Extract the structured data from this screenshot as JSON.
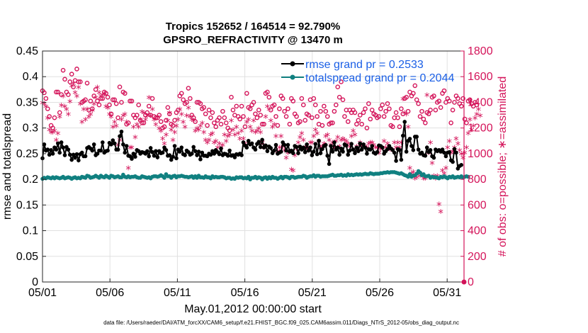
{
  "chart_data": {
    "type": "line",
    "title_line1": "Tropics 152652 / 164514 = 92.790%",
    "title_line2": "GPSRO_REFRACTIVITY @ 13470 m",
    "xlabel": "May.01,2012 00:00:00 start",
    "ylabel_left": "rmse and totalspread",
    "ylabel_right": "# of obs: o=possible; ∗=assimilated",
    "footnote": "data file: /Users/raeder/DAI/ATM_forcXX/CAM6_setup/f.e21.FHIST_BGC.f09_025.CAM6assim.011/Diags_NTrS_2012-05/obs_diag_output.nc",
    "x_range": [
      1,
      32.25
    ],
    "x_ticks": [
      1,
      6,
      11,
      16,
      21,
      26,
      31
    ],
    "x_tick_labels": [
      "05/01",
      "05/06",
      "05/11",
      "05/16",
      "05/21",
      "05/26",
      "05/31"
    ],
    "ylim_left": [
      0,
      0.45
    ],
    "y_ticks_left": [
      0,
      0.05,
      0.1,
      0.15,
      0.2,
      0.25,
      0.3,
      0.35,
      0.4,
      0.45
    ],
    "y_tick_labels_left": [
      "0",
      "0.05",
      "0.1",
      "0.15",
      "0.2",
      "0.25",
      "0.3",
      "0.35",
      "0.4",
      "0.45"
    ],
    "ylim_right": [
      0,
      1800
    ],
    "y_ticks_right": [
      0,
      200,
      400,
      600,
      800,
      1000,
      1200,
      1400,
      1600,
      1800
    ],
    "y_tick_labels_right": [
      "0",
      "200",
      "400",
      "600",
      "800",
      "1000",
      "1200",
      "1400",
      "1600",
      "1800"
    ],
    "grid": true,
    "legend_position": "top-right",
    "colors": {
      "rmse": "#000000",
      "totalspread": "#108080",
      "obs": "#d4145a",
      "legend_text": "#1a5fe6",
      "grid": "#e0e0e0"
    },
    "series": [
      {
        "name": "rmse grand pr = 0.2533",
        "key": "rmse",
        "values": [
          0.241,
          0.268,
          0.256,
          0.258,
          0.248,
          0.257,
          0.25,
          0.262,
          0.258,
          0.27,
          0.252,
          0.272,
          0.262,
          0.247,
          0.263,
          0.258,
          0.248,
          0.238,
          0.248,
          0.242,
          0.249,
          0.237,
          0.249,
          0.252,
          0.245,
          0.245,
          0.261,
          0.263,
          0.26,
          0.256,
          0.268,
          0.247,
          0.25,
          0.256,
          0.256,
          0.272,
          0.252,
          0.255,
          0.256,
          0.271,
          0.268,
          0.276,
          0.27,
          0.258,
          0.258,
          0.284,
          0.293,
          0.268,
          0.252,
          0.265,
          0.246,
          0.245,
          0.24,
          0.25,
          0.244,
          0.257,
          0.255,
          0.25,
          0.253,
          0.252,
          0.25,
          0.255,
          0.245,
          0.261,
          0.253,
          0.246,
          0.255,
          0.243,
          0.255,
          0.251,
          0.252,
          0.262,
          0.257,
          0.246,
          0.247,
          0.238,
          0.244,
          0.265,
          0.241,
          0.258,
          0.254,
          0.262,
          0.249,
          0.247,
          0.256,
          0.253,
          0.248,
          0.25,
          0.263,
          0.255,
          0.247,
          0.254,
          0.239,
          0.252,
          0.246,
          0.246,
          0.245,
          0.25,
          0.248,
          0.255,
          0.25,
          0.257,
          0.253,
          0.249,
          0.26,
          0.247,
          0.25,
          0.249,
          0.246,
          0.256,
          0.246,
          0.247,
          0.243,
          0.249,
          0.248,
          0.25,
          0.247,
          0.272,
          0.266,
          0.262,
          0.275,
          0.268,
          0.27,
          0.262,
          0.258,
          0.269,
          0.273,
          0.263,
          0.277,
          0.262,
          0.266,
          0.255,
          0.264,
          0.261,
          0.251,
          0.256,
          0.267,
          0.25,
          0.252,
          0.254,
          0.272,
          0.267,
          0.256,
          0.267,
          0.254,
          0.256,
          0.251,
          0.265,
          0.263,
          0.251,
          0.264,
          0.258,
          0.262,
          0.253,
          0.268,
          0.256,
          0.262,
          0.247,
          0.254,
          0.269,
          0.249,
          0.275,
          0.251,
          0.259,
          0.265,
          0.267,
          0.246,
          0.23,
          0.265,
          0.254,
          0.272,
          0.258,
          0.262,
          0.248,
          0.26,
          0.254,
          0.268,
          0.266,
          0.248,
          0.256,
          0.269,
          0.258,
          0.251,
          0.262,
          0.255,
          0.27,
          0.258,
          0.268,
          0.262,
          0.25,
          0.259,
          0.258,
          0.265,
          0.252,
          0.25,
          0.253,
          0.266,
          0.265,
          0.262,
          0.25,
          0.255,
          0.259,
          0.265,
          0.26,
          0.257,
          0.252,
          0.236,
          0.259,
          0.257,
          0.238,
          0.285,
          0.312,
          0.254,
          0.275,
          0.279,
          0.265,
          0.257,
          0.283,
          0.283,
          0.258,
          0.25,
          0.252,
          0.247,
          0.246,
          0.262,
          0.253,
          0.257,
          0.245,
          0.242,
          0.258,
          0.255,
          0.257,
          0.254,
          0.258,
          0.252,
          0.245,
          0.252,
          0.253,
          0.237,
          0.234,
          0.259,
          0.252,
          0.221,
          0.226,
          0.228
        ]
      },
      {
        "name": "totalspread grand pr = 0.2044",
        "key": "totalspread",
        "values": [
          0.201,
          0.203,
          0.202,
          0.204,
          0.203,
          0.202,
          0.204,
          0.202,
          0.204,
          0.203,
          0.202,
          0.203,
          0.205,
          0.202,
          0.203,
          0.204,
          0.203,
          0.201,
          0.203,
          0.204,
          0.202,
          0.203,
          0.202,
          0.205,
          0.204,
          0.203,
          0.207,
          0.206,
          0.203,
          0.204,
          0.205,
          0.207,
          0.205,
          0.203,
          0.207,
          0.205,
          0.204,
          0.207,
          0.205,
          0.203,
          0.207,
          0.206,
          0.204,
          0.205,
          0.206,
          0.204,
          0.204,
          0.209,
          0.205,
          0.204,
          0.206,
          0.204,
          0.205,
          0.205,
          0.206,
          0.204,
          0.203,
          0.203,
          0.206,
          0.205,
          0.204,
          0.203,
          0.204,
          0.202,
          0.205,
          0.206,
          0.206,
          0.205,
          0.206,
          0.208,
          0.206,
          0.203,
          0.21,
          0.206,
          0.206,
          0.203,
          0.206,
          0.207,
          0.204,
          0.206,
          0.206,
          0.207,
          0.206,
          0.205,
          0.205,
          0.204,
          0.205,
          0.206,
          0.203,
          0.206,
          0.203,
          0.207,
          0.204,
          0.204,
          0.203,
          0.206,
          0.204,
          0.204,
          0.202,
          0.206,
          0.204,
          0.205,
          0.204,
          0.204,
          0.205,
          0.205,
          0.204,
          0.202,
          0.203,
          0.203,
          0.201,
          0.202,
          0.201,
          0.204,
          0.203,
          0.204,
          0.204,
          0.202,
          0.203,
          0.202,
          0.205,
          0.2,
          0.203,
          0.203,
          0.205,
          0.202,
          0.204,
          0.203,
          0.2,
          0.203,
          0.204,
          0.201,
          0.204,
          0.202,
          0.205,
          0.203,
          0.203,
          0.201,
          0.203,
          0.205,
          0.202,
          0.205,
          0.205,
          0.204,
          0.202,
          0.205,
          0.205,
          0.203,
          0.204,
          0.205,
          0.205,
          0.205,
          0.207,
          0.206,
          0.203,
          0.205,
          0.206,
          0.206,
          0.208,
          0.205,
          0.207,
          0.207,
          0.205,
          0.206,
          0.206,
          0.206,
          0.206,
          0.207,
          0.208,
          0.209,
          0.207,
          0.207,
          0.208,
          0.208,
          0.209,
          0.207,
          0.208,
          0.207,
          0.21,
          0.208,
          0.209,
          0.208,
          0.209,
          0.21,
          0.209,
          0.21,
          0.209,
          0.21,
          0.211,
          0.21,
          0.21,
          0.212,
          0.211,
          0.21,
          0.211,
          0.211,
          0.211,
          0.212,
          0.212,
          0.213,
          0.213,
          0.214,
          0.213,
          0.214,
          0.214,
          0.214,
          0.213,
          0.212,
          0.211,
          0.212,
          0.21,
          0.208,
          0.207,
          0.205,
          0.21,
          0.205,
          0.207,
          0.208,
          0.211,
          0.216,
          0.213,
          0.208,
          0.21,
          0.206,
          0.206,
          0.207,
          0.203,
          0.205,
          0.204,
          0.204,
          0.203,
          0.202,
          0.205,
          0.204,
          0.206,
          0.204,
          0.202,
          0.205,
          0.204,
          0.206,
          0.203,
          0.204,
          0.205,
          0.204,
          0.206,
          0.203,
          0.205,
          0.206,
          0.205
        ]
      },
      {
        "name": "possible",
        "key": "obs_possible",
        "values": [
          1490,
          1475,
          1430,
          1350,
          1290,
          1220,
          1200,
          1280,
          1480,
          1480,
          1320,
          1460,
          1650,
          1580,
          1480,
          1460,
          1560,
          1620,
          1520,
          1570,
          1660,
          1560,
          1560,
          1400,
          1410,
          1420,
          1550,
          1340,
          1410,
          1350,
          1450,
          1500,
          1410,
          1380,
          1430,
          1430,
          1480,
          1470,
          1440,
          1380,
          1310,
          1420,
          1420,
          1390,
          1280,
          1520,
          1400,
          1480,
          1470,
          1230,
          1240,
          1410,
          1410,
          1300,
          1280,
          1300,
          1380,
          1260,
          1240,
          1240,
          1300,
          1320,
          1370,
          1300,
          1430,
          1290,
          1280,
          1280,
          1300,
          1250,
          1200,
          1210,
          1260,
          1360,
          1310,
          1230,
          1220,
          1260,
          1320,
          1340,
          1450,
          1470,
          1420,
          1390,
          1400,
          1510,
          1430,
          1300,
          1280,
          1250,
          1400,
          1400,
          1390,
          1350,
          1360,
          1310,
          1220,
          1340,
          1280,
          1320,
          1240,
          1210,
          1260,
          1280,
          1230,
          1330,
          1280,
          1240,
          1200,
          1180,
          1440,
          1340,
          1300,
          1370,
          1290,
          1270,
          1370,
          1290,
          1210,
          1470,
          1360,
          1350,
          1380,
          1400,
          1310,
          1280,
          1340,
          1300,
          1230,
          1230,
          1470,
          1480,
          1440,
          1340,
          1370,
          1380,
          1290,
          1220,
          1350,
          1450,
          1430,
          1330,
          1290,
          1350,
          1230,
          1430,
          1410,
          1310,
          1290,
          1240,
          1250,
          1430,
          1380,
          1260,
          1310,
          1300,
          1420,
          1280,
          1430,
          1380,
          1290,
          1230,
          1330,
          1220,
          1370,
          1330,
          1290,
          1230,
          1240,
          1240,
          1330,
          1380,
          1520,
          1440,
          1560,
          1420,
          1290,
          1340,
          1250,
          1340,
          1320,
          1340,
          1320,
          1230,
          1260,
          1300,
          1230,
          1320,
          1350,
          1200,
          1390,
          1270,
          1340,
          1310,
          1300,
          1280,
          1290,
          1350,
          1380,
          1290,
          1330,
          1390,
          1350,
          1220,
          1210,
          1280,
          1320,
          1280,
          1210,
          1350,
          1310,
          1430,
          1440,
          1330,
          1480,
          1450,
          1470,
          1530,
          1420,
          1390,
          1290,
          1330,
          1270,
          1240,
          1320,
          1310,
          1340,
          1440,
          1450,
          1340,
          1400,
          1410,
          1360,
          1470,
          1490,
          1400,
          1430,
          1410,
          1240,
          1340,
          1400,
          1450,
          1430,
          1390,
          1370,
          1430,
          1270,
          1240,
          1410,
          1420,
          1390,
          1370,
          1400,
          1380
        ]
      },
      {
        "name": "assimilated",
        "key": "obs_assimilated",
        "values": [
          1390,
          1380,
          1360,
          1270,
          1180,
          1160,
          1160,
          1170,
          1100,
          1150,
          1280,
          1370,
          1440,
          1360,
          1340,
          1300,
          1400,
          1520,
          1540,
          1470,
          1440,
          1510,
          1380,
          1240,
          1340,
          1260,
          1340,
          1280,
          1300,
          1330,
          1380,
          1430,
          1510,
          1470,
          1440,
          1450,
          1460,
          1360,
          1350,
          1300,
          1280,
          1200,
          1240,
          1210,
          1060,
          1100,
          1260,
          1290,
          1300,
          1240,
          880,
          1040,
          1040,
          1200,
          1120,
          1220,
          1200,
          1260,
          1320,
          1310,
          1260,
          1290,
          1430,
          1290,
          1340,
          1260,
          1220,
          1280,
          1190,
          1170,
          1110,
          1070,
          1140,
          1250,
          1310,
          1180,
          1100,
          1160,
          1210,
          1260,
          1340,
          1300,
          1240,
          1200,
          1290,
          1350,
          1280,
          1260,
          1250,
          1170,
          1190,
          1180,
          1210,
          1230,
          1160,
          1100,
          1080,
          1100,
          1140,
          1150,
          1080,
          1090,
          1040,
          1070,
          1040,
          1060,
          1140,
          1090,
          1130,
          1140,
          1250,
          1180,
          1140,
          1200,
          1150,
          1110,
          1170,
          1110,
          1070,
          1240,
          1260,
          1200,
          1170,
          1250,
          1160,
          1170,
          1190,
          1160,
          1080,
          1040,
          1280,
          1360,
          1340,
          1250,
          1200,
          1220,
          1130,
          1010,
          1040,
          1130,
          1050,
          1020,
          960,
          1000,
          1010,
          870,
          860,
          980,
          1030,
          1080,
          1120,
          1150,
          1100,
          1040,
          1040,
          1020,
          1080,
          1080,
          1130,
          1180,
          1150,
          1090,
          1040,
          1050,
          1070,
          1130,
          1140,
          1100,
          1060,
          1080,
          1040,
          1090,
          1120,
          1050,
          1100,
          1110,
          1100,
          1090,
          1070,
          1050,
          1130,
          1170,
          1140,
          1050,
          1020,
          1080,
          1060,
          1060,
          1050,
          1040,
          1070,
          1080,
          1080,
          1060,
          1040,
          1040,
          1000,
          1030,
          1040,
          1090,
          1040,
          1070,
          1030,
          1030,
          1020,
          1080,
          1040,
          1080,
          1040,
          1080,
          1420,
          1310,
          1300,
          1200,
          880,
          840,
          850,
          800,
          810,
          840,
          820,
          830,
          800,
          800,
          1450,
          1000,
          1080,
          920,
          820,
          800,
          820,
          600,
          540,
          860,
          840,
          880,
          1040,
          1090,
          1000,
          1010,
          1040,
          1110,
          1070,
          1020,
          990,
          960,
          1000,
          1040,
          1150,
          1260,
          1180,
          1210,
          1270,
          1300,
          1340,
          1290
        ]
      }
    ]
  }
}
